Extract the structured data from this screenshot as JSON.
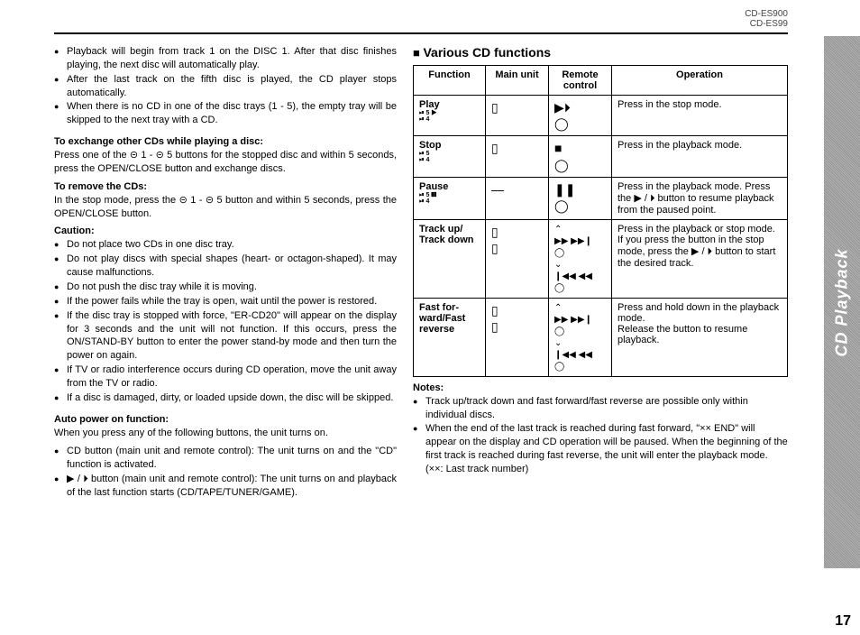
{
  "header": {
    "model1": "CD-ES900",
    "model2": "CD-ES99"
  },
  "sideTab": "CD Playback",
  "pageNumber": "17",
  "left": {
    "intro": [
      "Playback will begin from track 1 on the DISC 1. After that disc finishes playing, the next disc will automatically play.",
      "After the last track on the fifth disc is played, the CD player stops automatically.",
      "When there is no CD in one of the disc trays (1 - 5), the empty tray will be skipped to the next tray with a CD."
    ],
    "exchange": {
      "title": "To exchange other CDs while playing a disc:",
      "body": "Press one of the ⊝ 1 - ⊝ 5 buttons for the stopped disc and within 5 seconds, press the OPEN/CLOSE button and exchange discs."
    },
    "remove": {
      "title": "To remove the CDs:",
      "body": "In the stop mode, press the ⊝ 1 - ⊝ 5 button and within 5 seconds, press the OPEN/CLOSE button."
    },
    "caution": {
      "title": "Caution:",
      "items": [
        "Do not place two CDs in one disc tray.",
        "Do not play discs with special shapes (heart- or octagon-shaped). It may cause malfunctions.",
        "Do not push the disc tray while it is moving.",
        "If the power fails while the tray is open, wait until the power is restored.",
        "If the disc tray is stopped with force, \"ER-CD20\" will appear on the display for 3 seconds and the unit will not function. If this occurs, press the ON/STAND-BY button to enter the power stand-by mode and then turn the power on again.",
        "If TV or radio interference occurs during CD operation, move the unit away from the TV or radio.",
        "If a disc is damaged, dirty, or loaded upside down, the disc will be skipped."
      ]
    },
    "autopower": {
      "title": "Auto power on function:",
      "lead": "When you press any of the following buttons, the unit turns on.",
      "items": [
        "CD button (main unit and remote control): The unit turns on and the \"CD\" function is activated.",
        "▶ / ⏵ button (main unit and remote control): The unit turns on and playback of the last function starts (CD/TAPE/TUNER/GAME)."
      ]
    }
  },
  "right": {
    "title": "Various CD functions",
    "table": {
      "headers": {
        "h1": "Function",
        "h2": "Main unit",
        "h3": "Remote control",
        "h4": "Operation"
      },
      "rows": [
        {
          "func": "Play",
          "subIcon": "⏯ 5 ▶\n⏯ 4",
          "main": "▯",
          "remote": "▶⏵\n◯",
          "op": "Press in the stop mode."
        },
        {
          "func": "Stop",
          "subIcon": "⏯ 5\n⏯ 4",
          "main": "▯",
          "remote": "■\n◯",
          "op": "Press in the playback mode."
        },
        {
          "func": "Pause",
          "subIcon": "⏯ 5  ❚❚\n⏯ 4",
          "main": "—",
          "remote": "❚❚\n◯",
          "op": "Press in the playback mode. Press the ▶ / ⏵ button to resume playback from the paused point."
        },
        {
          "func": "Track up/\nTrack down",
          "subIcon": "",
          "main": "▯\n▯",
          "remote": "⌃\n▶▶ ▶▶❙\n◯\n⌄\n❙◀◀ ◀◀\n◯",
          "op": "Press in the playback or stop mode.\nIf you press the button in the stop mode, press the ▶ / ⏵ button to start the desired track."
        },
        {
          "func": "Fast for-\nward/Fast\nreverse",
          "subIcon": "",
          "main": "▯\n▯",
          "remote": "⌃\n▶▶ ▶▶❙\n◯\n⌄\n❙◀◀ ◀◀\n◯",
          "op": "Press and hold down in the playback mode.\nRelease the button to resume playback."
        }
      ]
    },
    "notes": {
      "title": "Notes:",
      "items": [
        "Track up/track down and fast forward/fast reverse are possible only within individual discs.",
        "When the end of the last track is reached during fast forward, \"×× END\" will appear on the display and CD operation will be paused. When the beginning of the first track is reached during fast reverse, the unit will enter the playback mode.\n(××: Last track number)"
      ]
    }
  }
}
